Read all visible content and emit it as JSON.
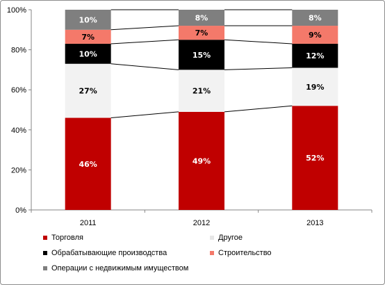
{
  "chart_data": {
    "type": "bar",
    "stacked": true,
    "categories": [
      "2011",
      "2012",
      "2013"
    ],
    "series": [
      {
        "name": "Торговля",
        "values": [
          46,
          49,
          52
        ],
        "color": "#c00000",
        "label_color": "#ffffff"
      },
      {
        "name": "Другое",
        "values": [
          27,
          21,
          19
        ],
        "color": "#f2f2f2",
        "label_color": "#000000"
      },
      {
        "name": "Обрабатывающие производства",
        "values": [
          10,
          15,
          12
        ],
        "color": "#000000",
        "label_color": "#ffffff"
      },
      {
        "name": "Строительство",
        "values": [
          7,
          7,
          9
        ],
        "color": "#f4796a",
        "label_color": "#000000"
      },
      {
        "name": "Операции с недвижимым имуществом",
        "values": [
          10,
          8,
          8
        ],
        "color": "#7f7f7f",
        "label_color": "#ffffff"
      }
    ],
    "value_suffix": "%",
    "ylim": [
      0,
      100
    ],
    "yticks": [
      "0%",
      "20%",
      "40%",
      "60%",
      "80%",
      "100%"
    ],
    "series_lines": true,
    "legend_position": "bottom",
    "grid": false
  }
}
